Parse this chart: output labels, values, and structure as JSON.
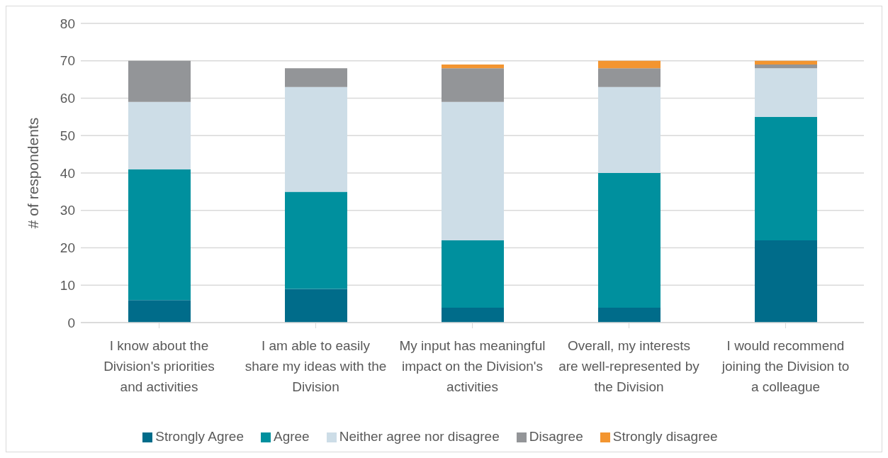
{
  "chart_data": {
    "type": "bar",
    "stacked": true,
    "ylabel": "# of respondents",
    "categories": [
      "I know about the Division's priorities and activities",
      "I am able to easily share my ideas with the Division",
      "My input has meaningful impact on the Division's activities",
      "Overall, my interests are well-represented by the Division",
      "I would recommend joining the Division to a colleague"
    ],
    "series": [
      {
        "name": "Strongly Agree",
        "color": "#006c8a",
        "values": [
          6,
          9,
          4,
          4,
          22
        ]
      },
      {
        "name": "Agree",
        "color": "#00909e",
        "values": [
          35,
          26,
          18,
          36,
          33
        ]
      },
      {
        "name": "Neither agree nor disagree",
        "color": "#cddde7",
        "values": [
          18,
          28,
          37,
          23,
          13
        ]
      },
      {
        "name": "Disagree",
        "color": "#939598",
        "values": [
          11,
          5,
          9,
          5,
          1
        ]
      },
      {
        "name": "Strongly disagree",
        "color": "#f39530",
        "values": [
          0,
          0,
          1,
          2,
          1
        ]
      }
    ],
    "ylim": [
      0,
      80
    ],
    "yticks": [
      0,
      10,
      20,
      30,
      40,
      50,
      60,
      70,
      80
    ],
    "grid": "y",
    "legend": "bottom"
  }
}
